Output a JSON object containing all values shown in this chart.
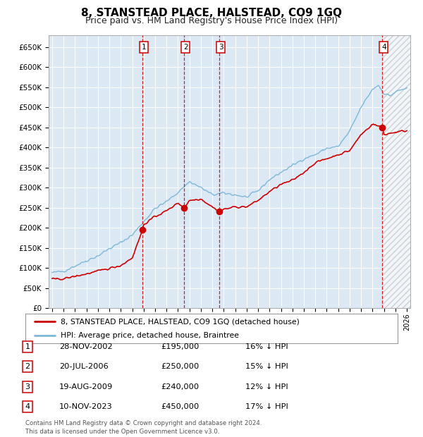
{
  "title": "8, STANSTEAD PLACE, HALSTEAD, CO9 1GQ",
  "subtitle": "Price paid vs. HM Land Registry's House Price Index (HPI)",
  "ylim": [
    0,
    680000
  ],
  "yticks": [
    0,
    50000,
    100000,
    150000,
    200000,
    250000,
    300000,
    350000,
    400000,
    450000,
    500000,
    550000,
    600000,
    650000
  ],
  "ytick_labels": [
    "£0",
    "£50K",
    "£100K",
    "£150K",
    "£200K",
    "£250K",
    "£300K",
    "£350K",
    "£400K",
    "£450K",
    "£500K",
    "£550K",
    "£600K",
    "£650K"
  ],
  "x_start_year": 1995,
  "x_end_year": 2026,
  "plot_bg_color": "#dce9f5",
  "hpi_color": "#7db8d8",
  "price_color": "#cc0000",
  "marker_color": "#cc0000",
  "vline_color": "#cc0000",
  "grid_color": "#ffffff",
  "transactions": [
    {
      "label": "1",
      "date": 2002.91,
      "price": 195000
    },
    {
      "label": "2",
      "date": 2006.55,
      "price": 250000
    },
    {
      "label": "3",
      "date": 2009.63,
      "price": 240000
    },
    {
      "label": "4",
      "date": 2023.86,
      "price": 450000
    }
  ],
  "legend_entries": [
    "8, STANSTEAD PLACE, HALSTEAD, CO9 1GQ (detached house)",
    "HPI: Average price, detached house, Braintree"
  ],
  "table_rows": [
    {
      "num": "1",
      "date": "28-NOV-2002",
      "price": "£195,000",
      "pct": "16% ↓ HPI"
    },
    {
      "num": "2",
      "date": "20-JUL-2006",
      "price": "£250,000",
      "pct": "15% ↓ HPI"
    },
    {
      "num": "3",
      "date": "19-AUG-2009",
      "price": "£240,000",
      "pct": "12% ↓ HPI"
    },
    {
      "num": "4",
      "date": "10-NOV-2023",
      "price": "£450,000",
      "pct": "17% ↓ HPI"
    }
  ],
  "footer": "Contains HM Land Registry data © Crown copyright and database right 2024.\nThis data is licensed under the Open Government Licence v3.0.",
  "hpi_control_x": [
    1995,
    1996,
    1997,
    1998,
    1999,
    2000,
    2001,
    2002,
    2003,
    2004,
    2005,
    2006,
    2007,
    2008,
    2009,
    2010,
    2011,
    2012,
    2013,
    2014,
    2015,
    2016,
    2017,
    2018,
    2019,
    2020,
    2021,
    2022,
    2023,
    2023.5,
    2024,
    2024.5,
    2025,
    2026
  ],
  "hpi_control_y": [
    88000,
    92000,
    105000,
    118000,
    130000,
    148000,
    163000,
    182000,
    215000,
    248000,
    265000,
    288000,
    315000,
    300000,
    282000,
    286000,
    282000,
    276000,
    292000,
    320000,
    338000,
    355000,
    372000,
    382000,
    398000,
    402000,
    440000,
    500000,
    545000,
    555000,
    535000,
    528000,
    538000,
    548000
  ],
  "price_control_x": [
    1995,
    1996,
    1997,
    1998,
    1999,
    2000,
    2001,
    2002,
    2002.91,
    2003,
    2004,
    2005,
    2006,
    2006.55,
    2007,
    2008,
    2009,
    2009.63,
    2010,
    2011,
    2012,
    2013,
    2014,
    2015,
    2016,
    2017,
    2018,
    2019,
    2020,
    2021,
    2022,
    2023,
    2023.86,
    2024,
    2025,
    2026
  ],
  "price_control_y": [
    72000,
    73000,
    79000,
    85000,
    92000,
    99000,
    106000,
    125000,
    195000,
    208000,
    228000,
    242000,
    262000,
    250000,
    268000,
    272000,
    252000,
    240000,
    246000,
    252000,
    252000,
    268000,
    290000,
    308000,
    318000,
    338000,
    362000,
    372000,
    382000,
    392000,
    432000,
    458000,
    450000,
    432000,
    438000,
    442000
  ]
}
